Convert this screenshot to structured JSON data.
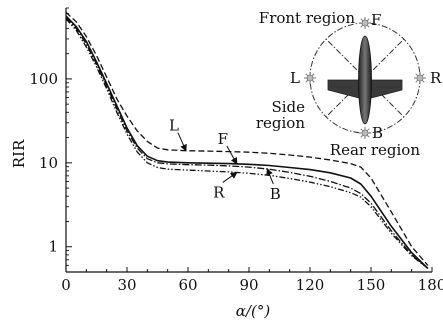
{
  "chart_data": {
    "type": "line",
    "title": "",
    "xlabel": "α/(°)",
    "ylabel": "RIR",
    "xlim": [
      0,
      180
    ],
    "ylim": [
      0.5,
      700
    ],
    "yscale": "log",
    "x_ticks": [
      0,
      30,
      60,
      90,
      120,
      150,
      180
    ],
    "x_tick_labels": [
      "0",
      "30",
      "60",
      "90",
      "120",
      "150",
      "180"
    ],
    "y_ticks": [
      1,
      10,
      100
    ],
    "y_tick_labels": [
      "1",
      "10",
      "100"
    ],
    "grid": false,
    "series": [
      {
        "name": "L",
        "style": "dashed",
        "x": [
          0,
          5,
          10,
          15,
          20,
          25,
          30,
          35,
          40,
          45,
          50,
          60,
          70,
          80,
          90,
          100,
          110,
          120,
          130,
          140,
          145,
          150,
          160,
          170,
          178
        ],
        "y": [
          620,
          480,
          320,
          190,
          105,
          58,
          36,
          24,
          18,
          15,
          14.3,
          13.9,
          13.8,
          13.6,
          13.4,
          13.0,
          12.4,
          11.7,
          10.8,
          9.8,
          8.9,
          6.6,
          2.6,
          1.0,
          0.6
        ]
      },
      {
        "name": "F",
        "style": "solid",
        "x": [
          0,
          5,
          10,
          15,
          20,
          25,
          30,
          35,
          40,
          45,
          50,
          60,
          70,
          80,
          90,
          100,
          110,
          120,
          130,
          140,
          145,
          150,
          160,
          170,
          178
        ],
        "y": [
          560,
          420,
          280,
          160,
          88,
          48,
          26,
          16,
          12,
          10.6,
          10.2,
          10.0,
          9.9,
          9.8,
          9.6,
          9.3,
          8.8,
          8.3,
          7.6,
          6.6,
          5.6,
          4.0,
          1.75,
          0.85,
          0.55
        ]
      },
      {
        "name": "B",
        "style": "dash-dot",
        "x": [
          0,
          5,
          10,
          15,
          20,
          25,
          30,
          35,
          40,
          45,
          50,
          60,
          70,
          80,
          90,
          100,
          110,
          120,
          130,
          140,
          145,
          150,
          160,
          170,
          178
        ],
        "y": [
          540,
          400,
          260,
          150,
          82,
          44,
          24,
          15,
          11.2,
          10.0,
          9.7,
          9.5,
          9.4,
          9.2,
          8.9,
          8.4,
          7.7,
          6.9,
          6.0,
          5.0,
          4.3,
          3.3,
          1.55,
          0.8,
          0.55
        ]
      },
      {
        "name": "R",
        "style": "dash-dot-dot",
        "x": [
          0,
          5,
          10,
          15,
          20,
          25,
          30,
          35,
          40,
          45,
          50,
          60,
          70,
          80,
          90,
          100,
          110,
          120,
          130,
          140,
          145,
          150,
          160,
          170,
          178
        ],
        "y": [
          520,
          380,
          240,
          140,
          76,
          40,
          22,
          13.5,
          10.0,
          8.8,
          8.4,
          8.2,
          8.0,
          7.8,
          7.5,
          7.1,
          6.5,
          5.9,
          5.2,
          4.4,
          3.9,
          3.0,
          1.45,
          0.78,
          0.55
        ]
      }
    ],
    "annotations": [
      {
        "label": "L",
        "series": "L",
        "x": 59
      },
      {
        "label": "F",
        "series": "F",
        "x": 84
      },
      {
        "label": "R",
        "series": "R",
        "x": 84
      },
      {
        "label": "B",
        "series": "B",
        "x": 99
      }
    ],
    "inset": {
      "labels": {
        "front": "Front region",
        "side": "Side\nregion",
        "rear": "Rear region",
        "F": "F",
        "L": "L",
        "R": "R",
        "B": "B"
      }
    }
  }
}
